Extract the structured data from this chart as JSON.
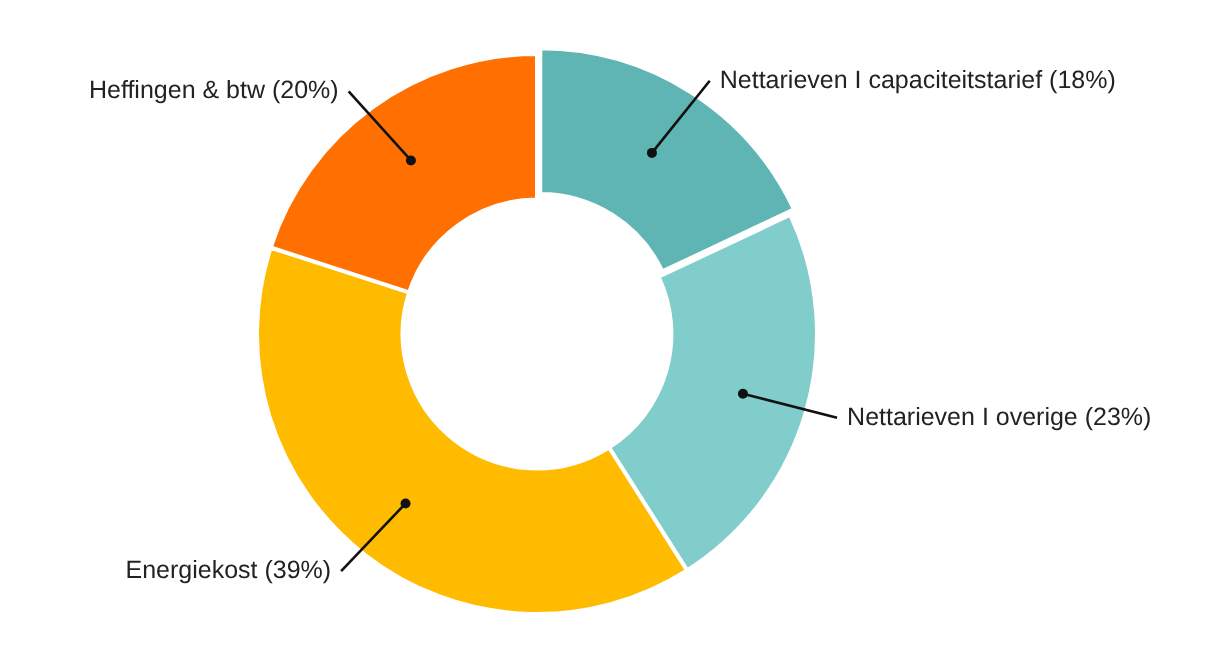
{
  "chart_data": {
    "type": "donut",
    "categories": [
      "Nettarieven I capaciteitstarief",
      "Nettarieven I overige",
      "Energiekost",
      "Heffingen & btw"
    ],
    "values": [
      18,
      23,
      39,
      20
    ],
    "value_labels": [
      "(18%)",
      "(23%)",
      "(39%)",
      "(20%)"
    ],
    "colors": [
      "#5fb5b3",
      "#80cdcc",
      "#ffbb00",
      "#ff7000"
    ],
    "legend": false
  }
}
